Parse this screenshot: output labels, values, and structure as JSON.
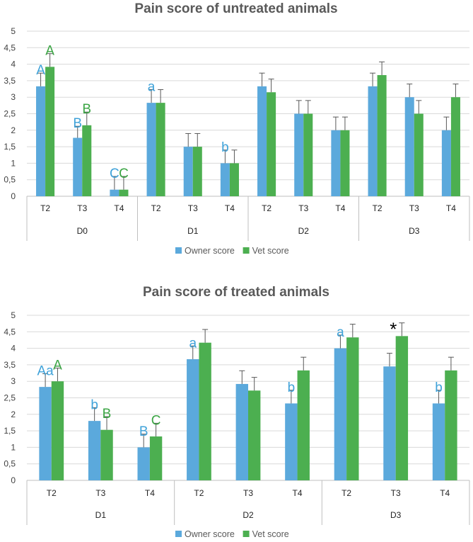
{
  "colors": {
    "owner": "#5BA9DC",
    "vet": "#4CAF50",
    "annot_owner": "#3FA2D9",
    "annot_vet": "#3BA544",
    "grid": "#d9d9d9",
    "axis": "#bfbfbf",
    "error": "#595959"
  },
  "chart_data": [
    {
      "type": "bar",
      "title": "Pain score of untreated animals",
      "ylim": [
        0,
        5
      ],
      "yticks": [
        "0",
        "0,5",
        "1",
        "1,5",
        "2",
        "2,5",
        "3",
        "3,5",
        "4",
        "4,5",
        "5"
      ],
      "grid": true,
      "legend": {
        "position": "bottom",
        "entries": [
          "Owner score",
          "Vet score"
        ]
      },
      "groups": [
        {
          "label": "D0",
          "categories": [
            "T2",
            "T3",
            "T4"
          ]
        },
        {
          "label": "D1",
          "categories": [
            "T2",
            "T3",
            "T4"
          ]
        },
        {
          "label": "D2",
          "categories": [
            "T2",
            "T3",
            "T4"
          ]
        },
        {
          "label": "D3",
          "categories": [
            "T2",
            "T3",
            "T4"
          ]
        }
      ],
      "series": [
        {
          "name": "Owner score",
          "values": [
            3.33,
            1.77,
            0.2,
            2.83,
            1.5,
            1.0,
            3.33,
            2.5,
            2.0,
            3.33,
            3.0,
            2.0
          ],
          "errors": [
            0.4,
            0.35,
            0.4,
            0.4,
            0.4,
            0.4,
            0.4,
            0.4,
            0.4,
            0.4,
            0.4,
            0.4
          ]
        },
        {
          "name": "Vet score",
          "values": [
            3.92,
            2.15,
            0.2,
            2.83,
            1.5,
            1.0,
            3.15,
            2.5,
            2.0,
            3.67,
            2.5,
            3.0
          ],
          "errors": [
            0.4,
            0.4,
            0.4,
            0.4,
            0.4,
            0.4,
            0.4,
            0.4,
            0.4,
            0.4,
            0.4,
            0.4
          ]
        }
      ],
      "annotations": [
        {
          "index": 0,
          "series": 0,
          "text": "A"
        },
        {
          "index": 0,
          "series": 1,
          "text": "A"
        },
        {
          "index": 1,
          "series": 0,
          "text": "B"
        },
        {
          "index": 1,
          "series": 1,
          "text": "B"
        },
        {
          "index": 2,
          "series": 0,
          "text": "C"
        },
        {
          "index": 2,
          "series": 1,
          "text": "C"
        },
        {
          "index": 3,
          "series": 0,
          "text": "a"
        },
        {
          "index": 5,
          "series": 0,
          "text": "b"
        }
      ]
    },
    {
      "type": "bar",
      "title": "Pain score of treated animals",
      "ylim": [
        0,
        5
      ],
      "yticks": [
        "0",
        "0,5",
        "1",
        "1,5",
        "2",
        "2,5",
        "3",
        "3,5",
        "4",
        "4,5",
        "5"
      ],
      "grid": true,
      "legend": {
        "position": "bottom",
        "entries": [
          "Owner score",
          "Vet score"
        ]
      },
      "groups": [
        {
          "label": "D1",
          "categories": [
            "T2",
            "T3",
            "T4"
          ]
        },
        {
          "label": "D2",
          "categories": [
            "T2",
            "T3",
            "T4"
          ]
        },
        {
          "label": "D3",
          "categories": [
            "T2",
            "T3",
            "T4"
          ]
        }
      ],
      "series": [
        {
          "name": "Owner score",
          "values": [
            2.83,
            1.8,
            1.0,
            3.67,
            2.92,
            2.33,
            4.0,
            3.45,
            2.33
          ],
          "errors": [
            0.4,
            0.4,
            0.4,
            0.4,
            0.4,
            0.4,
            0.4,
            0.4,
            0.4
          ]
        },
        {
          "name": "Vet score",
          "values": [
            3.0,
            1.53,
            1.33,
            4.17,
            2.72,
            3.33,
            4.33,
            4.37,
            3.33
          ],
          "errors": [
            0.4,
            0.4,
            0.4,
            0.4,
            0.4,
            0.4,
            0.4,
            0.4,
            0.4
          ]
        }
      ],
      "annotations": [
        {
          "index": 0,
          "series": 0,
          "text": "Aa"
        },
        {
          "index": 0,
          "series": 1,
          "text": "A"
        },
        {
          "index": 1,
          "series": 0,
          "text": "b"
        },
        {
          "index": 1,
          "series": 1,
          "text": "B"
        },
        {
          "index": 2,
          "series": 0,
          "text": "B"
        },
        {
          "index": 2,
          "series": 1,
          "text": "C"
        },
        {
          "index": 3,
          "series": 0,
          "text": "a"
        },
        {
          "index": 5,
          "series": 0,
          "text": "b"
        },
        {
          "index": 6,
          "series": 0,
          "text": "a"
        },
        {
          "index": 7,
          "series": 1,
          "text": "*",
          "style": "star"
        },
        {
          "index": 8,
          "series": 0,
          "text": "b"
        }
      ]
    }
  ]
}
